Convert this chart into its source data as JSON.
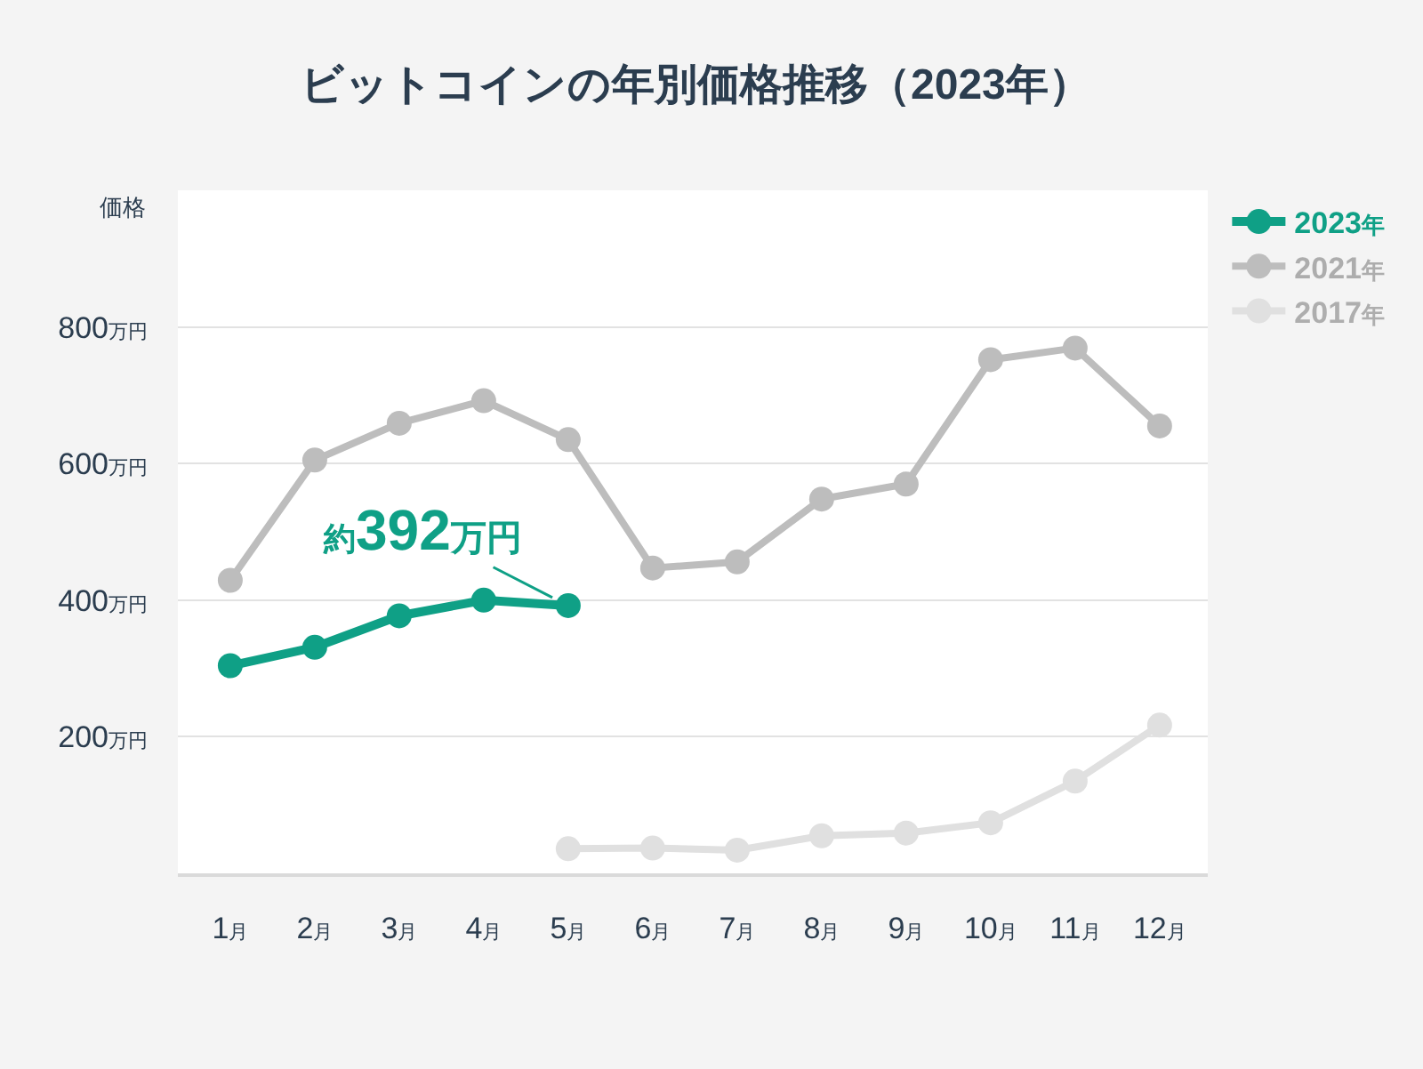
{
  "chart_data": {
    "type": "line",
    "title": "ビットコインの年別価格推移（2023年）",
    "ylabel": "価格",
    "categories": [
      "1月",
      "2月",
      "3月",
      "4月",
      "5月",
      "6月",
      "7月",
      "8月",
      "9月",
      "10月",
      "11月",
      "12月"
    ],
    "series": [
      {
        "name": "2023年",
        "color": "#0fa086",
        "values": [
          304,
          331,
          377,
          400,
          392,
          null,
          null,
          null,
          null,
          null,
          null,
          null
        ]
      },
      {
        "name": "2021年",
        "color": "#bdbdbd",
        "values": [
          429,
          605,
          659,
          692,
          635,
          447,
          456,
          548,
          570,
          752,
          769,
          655
        ]
      },
      {
        "name": "2017年",
        "color": "#e0e0e0",
        "values": [
          null,
          null,
          null,
          null,
          36,
          37,
          34,
          55,
          59,
          74,
          135,
          217
        ]
      }
    ],
    "annotations": [
      {
        "text": "約392万円",
        "x": "5月",
        "y": 392
      }
    ],
    "ylim": [
      0,
      1000
    ],
    "yticks": [
      {
        "value": 200,
        "label": "200万円"
      },
      {
        "value": 400,
        "label": "400万円"
      },
      {
        "value": 600,
        "label": "600万円"
      },
      {
        "value": 800,
        "label": "800万円"
      }
    ],
    "grid": "y",
    "legend": "top right",
    "marker": "circle",
    "line_style": "solid"
  }
}
